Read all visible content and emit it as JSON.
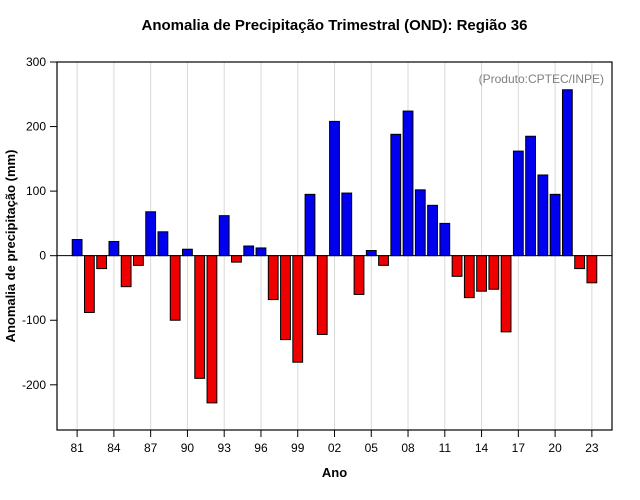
{
  "chart_data": {
    "type": "bar",
    "title": "Anomalia de Precipitação Trimestral (OND): Região 36",
    "annotation": "(Produto:CPTEC/INPE)",
    "xlabel": "Ano",
    "ylabel": "Anomalia de precipitação (mm)",
    "years": [
      1981,
      1982,
      1983,
      1984,
      1985,
      1986,
      1987,
      1988,
      1989,
      1990,
      1991,
      1992,
      1993,
      1994,
      1995,
      1996,
      1997,
      1998,
      1999,
      2000,
      2001,
      2002,
      2003,
      2004,
      2005,
      2006,
      2007,
      2008,
      2009,
      2010,
      2011,
      2012,
      2013,
      2014,
      2015,
      2016,
      2017,
      2018,
      2019,
      2020,
      2021,
      2022,
      2023
    ],
    "values": [
      25,
      -88,
      -20,
      22,
      -48,
      -15,
      68,
      37,
      -100,
      10,
      -190,
      -228,
      62,
      -10,
      15,
      12,
      -68,
      -130,
      -165,
      95,
      -122,
      208,
      97,
      -60,
      8,
      -15,
      188,
      224,
      102,
      78,
      50,
      -32,
      -65,
      -55,
      -52,
      -118,
      162,
      185,
      125,
      95,
      257,
      -20,
      -42
    ],
    "yticks": [
      -200,
      -100,
      0,
      100,
      200,
      300
    ],
    "xtick_labels": [
      "81",
      "84",
      "87",
      "90",
      "93",
      "96",
      "99",
      "02",
      "05",
      "08",
      "11",
      "14",
      "17",
      "20",
      "23"
    ],
    "xtick_step": 3,
    "ylim": [
      -270,
      300
    ],
    "grid": true,
    "legend": "none",
    "positive_color": "#0000ee",
    "negative_color": "#ee0000",
    "grid_color": "#d9d9d9",
    "annotation_color": "#7f7f7f"
  }
}
